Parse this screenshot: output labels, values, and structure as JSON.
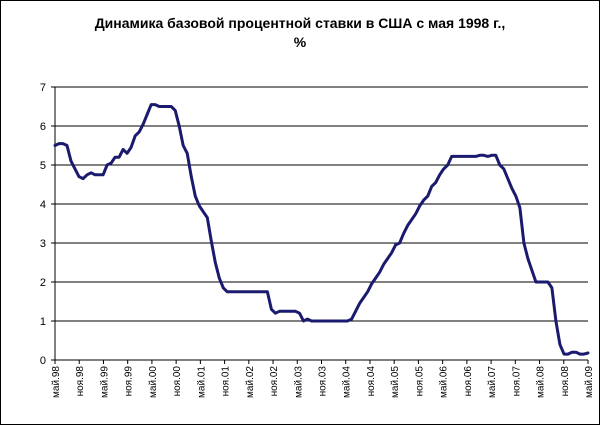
{
  "chart_data": {
    "type": "line",
    "title": "Динамика базовой процентной ставки в США с мая 1998 г.,",
    "subtitle": "%",
    "xlabel": "",
    "ylabel": "",
    "ylim": [
      0,
      7
    ],
    "yticks": [
      "0",
      "1",
      "2",
      "3",
      "4",
      "5",
      "6",
      "7"
    ],
    "grid": "horizontal",
    "x_start": "май.98",
    "x_end": "май.09",
    "xtick_labels": [
      "май.98",
      "ноя.98",
      "май.99",
      "ноя.99",
      "май.00",
      "ноя.00",
      "май.01",
      "ноя.01",
      "май.02",
      "ноя.02",
      "май.03",
      "ноя.03",
      "май.04",
      "ноя.04",
      "май.05",
      "ноя.05",
      "май.06",
      "ноя.06",
      "май.07",
      "ноя.07",
      "май.08",
      "ноя.08",
      "май.09"
    ],
    "series": [
      {
        "name": "",
        "color": "#1a1a6e",
        "values": [
          5.5,
          5.55,
          5.55,
          5.5,
          5.1,
          4.9,
          4.7,
          4.65,
          4.75,
          4.8,
          4.75,
          4.75,
          4.75,
          5.0,
          5.05,
          5.2,
          5.2,
          5.4,
          5.3,
          5.45,
          5.75,
          5.85,
          6.05,
          6.3,
          6.55,
          6.55,
          6.5,
          6.5,
          6.5,
          6.5,
          6.4,
          6.0,
          5.5,
          5.3,
          4.7,
          4.2,
          3.95,
          3.8,
          3.65,
          3.05,
          2.5,
          2.1,
          1.85,
          1.75,
          1.75,
          1.75,
          1.75,
          1.75,
          1.75,
          1.75,
          1.75,
          1.75,
          1.75,
          1.75,
          1.3,
          1.2,
          1.25,
          1.25,
          1.25,
          1.25,
          1.25,
          1.2,
          1.0,
          1.05,
          1.0,
          1.0,
          1.0,
          1.0,
          1.0,
          1.0,
          1.0,
          1.0,
          1.0,
          1.0,
          1.05,
          1.25,
          1.45,
          1.6,
          1.75,
          1.95,
          2.1,
          2.25,
          2.45,
          2.6,
          2.75,
          2.95,
          3.0,
          3.25,
          3.45,
          3.6,
          3.75,
          3.95,
          4.1,
          4.2,
          4.45,
          4.55,
          4.75,
          4.9,
          5.0,
          5.22,
          5.22,
          5.22,
          5.22,
          5.22,
          5.22,
          5.22,
          5.25,
          5.25,
          5.22,
          5.25,
          5.25,
          5.0,
          4.9,
          4.65,
          4.4,
          4.2,
          3.9,
          3.0,
          2.6,
          2.3,
          2.0,
          2.0,
          2.0,
          2.0,
          1.85,
          1.0,
          0.4,
          0.15,
          0.15,
          0.2,
          0.2,
          0.15,
          0.15,
          0.18
        ]
      }
    ]
  }
}
